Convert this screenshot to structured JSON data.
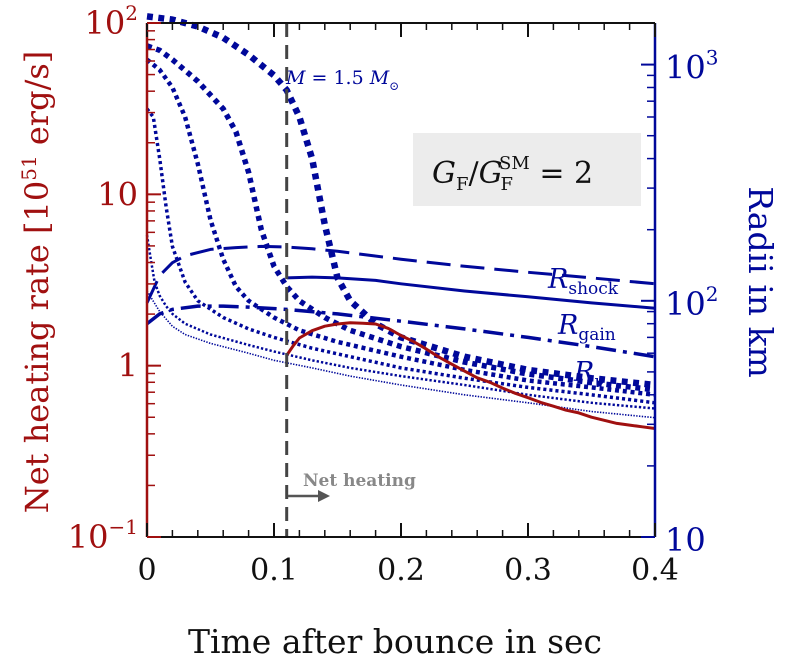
{
  "chart_data": {
    "type": "line",
    "title": "",
    "xlabel": "Time after bounce in sec",
    "ylabel_left": "Net heating rate",
    "ylabel_left_unit": "[10",
    "ylabel_left_unit_exp": "51",
    "ylabel_left_unit_tail": " erg/s]",
    "ylabel_right": "Radii in km",
    "xlim": [
      0,
      0.4
    ],
    "ylim_left": [
      0.1,
      100
    ],
    "ylim_right": [
      10,
      1500
    ],
    "yscale_left": "log",
    "yscale_right": "log",
    "grid": false,
    "x_ticks": [
      "0",
      "0.1",
      "0.2",
      "0.3",
      "0.4"
    ],
    "left_ticks": [
      {
        "value": 100,
        "base": "10",
        "exp": "2"
      },
      {
        "value": 10,
        "base": "10",
        "exp": ""
      },
      {
        "value": 1,
        "base": "1",
        "exp": ""
      },
      {
        "value": 0.1,
        "base": "10",
        "exp": "−1"
      }
    ],
    "right_ticks": [
      {
        "value": 1000,
        "base": "10",
        "exp": "3"
      },
      {
        "value": 100,
        "base": "10",
        "exp": "2"
      },
      {
        "value": 10,
        "base": "10",
        "exp": ""
      }
    ],
    "colors": {
      "left_axis": "#a01010",
      "right_axis": "#00089a",
      "vline": "#444444",
      "box": "#ececec",
      "annotation": "#888888"
    },
    "box_text": {
      "main": "G",
      "sub1": "F",
      "slash": "/",
      "main2": "G",
      "sub2": "F",
      "sup2": "SM",
      "tail": " = 2"
    },
    "mass_label": {
      "lhs": "M",
      "eq": " = 1.5 ",
      "rhs": "M",
      "sub": "⊙"
    },
    "net_heating_label": "Net heating",
    "vline_x": 0.11,
    "series": [
      {
        "name": "R_shock",
        "label_main": "R",
        "label_sub": "shock",
        "style": "dashed",
        "axis": "right",
        "x": [
          0,
          0.01,
          0.02,
          0.03,
          0.05,
          0.07,
          0.09,
          0.11,
          0.13,
          0.15,
          0.2,
          0.25,
          0.3,
          0.35,
          0.4
        ],
        "y": [
          98,
          128,
          145,
          155,
          165,
          168,
          170,
          169,
          166,
          162,
          150,
          140,
          132,
          125,
          118
        ]
      },
      {
        "name": "R_gain",
        "label_main": "R",
        "label_sub": "gain",
        "style": "solid",
        "axis": "right",
        "x": [
          0.11,
          0.13,
          0.15,
          0.18,
          0.2,
          0.25,
          0.3,
          0.35,
          0.4
        ],
        "y": [
          125,
          126,
          125,
          122,
          118,
          110,
          104,
          98,
          93
        ]
      },
      {
        "name": "R_nu",
        "label_main": "R",
        "label_sub": "ν",
        "style": "dashdot",
        "axis": "right",
        "x": [
          0,
          0.01,
          0.02,
          0.04,
          0.06,
          0.08,
          0.11,
          0.15,
          0.2,
          0.25,
          0.3,
          0.35,
          0.4
        ],
        "y": [
          80,
          88,
          92,
          95,
          95,
          94,
          92,
          88,
          82,
          76,
          70,
          64,
          58
        ]
      },
      {
        "name": "",
        "style": "dotted",
        "width": 6.5,
        "axis": "right",
        "x": [
          0,
          0.02,
          0.04,
          0.06,
          0.08,
          0.1,
          0.11,
          0.12,
          0.13,
          0.14,
          0.15,
          0.16,
          0.18,
          0.2,
          0.25,
          0.3,
          0.35,
          0.4
        ],
        "y": [
          1600,
          1550,
          1450,
          1300,
          1100,
          900,
          780,
          600,
          400,
          210,
          125,
          100,
          80,
          70,
          58,
          51,
          47,
          44
        ]
      },
      {
        "name": "",
        "style": "dotted",
        "width": 5.5,
        "axis": "right",
        "x": [
          0,
          0.01,
          0.02,
          0.04,
          0.06,
          0.07,
          0.08,
          0.09,
          0.1,
          0.11,
          0.12,
          0.14,
          0.16,
          0.2,
          0.25,
          0.3,
          0.35,
          0.4
        ],
        "y": [
          1200,
          1150,
          1050,
          850,
          650,
          520,
          350,
          200,
          140,
          115,
          100,
          85,
          75,
          64,
          55,
          49,
          45,
          42
        ]
      },
      {
        "name": "",
        "style": "dotted",
        "width": 4.5,
        "axis": "right",
        "x": [
          0,
          0.01,
          0.02,
          0.03,
          0.04,
          0.05,
          0.06,
          0.07,
          0.08,
          0.1,
          0.12,
          0.15,
          0.2,
          0.25,
          0.3,
          0.35,
          0.4
        ],
        "y": [
          1050,
          950,
          800,
          600,
          380,
          220,
          150,
          115,
          100,
          85,
          75,
          67,
          58,
          51,
          46,
          43,
          40
        ]
      },
      {
        "name": "",
        "style": "dotted",
        "width": 3.5,
        "axis": "right",
        "x": [
          0,
          0.005,
          0.01,
          0.015,
          0.02,
          0.03,
          0.04,
          0.06,
          0.08,
          0.1,
          0.13,
          0.16,
          0.2,
          0.25,
          0.3,
          0.35,
          0.4
        ],
        "y": [
          650,
          600,
          400,
          250,
          170,
          120,
          100,
          85,
          76,
          70,
          63,
          58,
          52,
          47,
          43,
          40,
          37
        ]
      },
      {
        "name": "",
        "style": "dotted",
        "width": 2.5,
        "axis": "right",
        "x": [
          0,
          0.003,
          0.006,
          0.01,
          0.015,
          0.02,
          0.03,
          0.05,
          0.08,
          0.1,
          0.13,
          0.16,
          0.2,
          0.25,
          0.3,
          0.35,
          0.4
        ],
        "y": [
          190,
          150,
          120,
          105,
          95,
          88,
          80,
          72,
          65,
          61,
          56,
          52,
          48,
          44,
          40,
          37,
          35
        ]
      },
      {
        "name": "",
        "style": "dotted",
        "width": 1.6,
        "axis": "right",
        "x": [
          0,
          0.01,
          0.02,
          0.03,
          0.05,
          0.08,
          0.1,
          0.13,
          0.16,
          0.2,
          0.25,
          0.3,
          0.35,
          0.4
        ],
        "y": [
          110,
          90,
          78,
          72,
          66,
          60,
          56,
          52,
          48,
          44,
          40,
          37,
          34,
          32
        ]
      },
      {
        "name": "net heating rate",
        "style": "solid",
        "axis": "left",
        "x": [
          0.11,
          0.115,
          0.12,
          0.13,
          0.14,
          0.15,
          0.16,
          0.17,
          0.18,
          0.19,
          0.2,
          0.21,
          0.22,
          0.23,
          0.24,
          0.25,
          0.26,
          0.27,
          0.28,
          0.29,
          0.3,
          0.31,
          0.32,
          0.33,
          0.34,
          0.35,
          0.36,
          0.37,
          0.38,
          0.39,
          0.4
        ],
        "y": [
          1.15,
          1.3,
          1.45,
          1.6,
          1.7,
          1.75,
          1.78,
          1.77,
          1.75,
          1.65,
          1.5,
          1.38,
          1.25,
          1.12,
          1.02,
          0.93,
          0.85,
          0.8,
          0.74,
          0.69,
          0.65,
          0.61,
          0.58,
          0.55,
          0.53,
          0.5,
          0.48,
          0.46,
          0.45,
          0.44,
          0.43
        ]
      }
    ]
  }
}
